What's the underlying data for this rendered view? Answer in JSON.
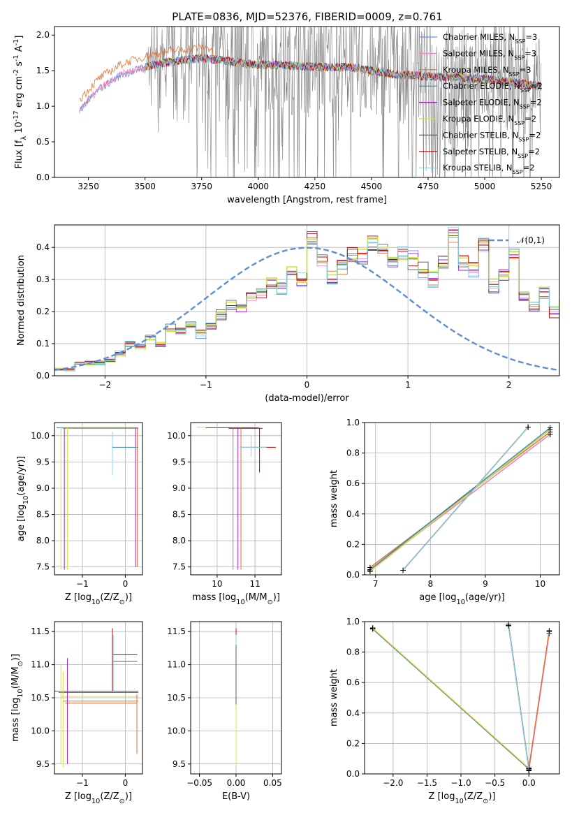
{
  "figure": {
    "title": "PLATE=0836, MJD=52376, FIBERID=0009, z=0.761"
  },
  "chart_data": [
    {
      "id": "spectrum",
      "type": "line",
      "xlabel": "wavelength [Angstrom, rest frame]",
      "ylabel": "Flux [f$_\\lambda 10^{-17}$ erg cm$^{-2}$ s$^{-1}$ A$^{-1}$]",
      "xlim": [
        3100,
        5330
      ],
      "ylim": [
        0,
        2.12
      ],
      "xticks": [
        "3250",
        "3500",
        "3750",
        "4000",
        "4250",
        "4500",
        "4750",
        "5000",
        "5250"
      ],
      "yticks": [
        "0.0",
        "0.5",
        "1.0",
        "1.5",
        "2.0"
      ],
      "legend_position": "top-right",
      "series": [
        {
          "name": "Chabrier MILES, N_SSP=3",
          "color": "#6495ed"
        },
        {
          "name": "Salpeter MILES, N_SSP=3",
          "color": "#ff7fbf"
        },
        {
          "name": "Kroupa MILES, N_SSP=3",
          "color": "#e07030"
        },
        {
          "name": "Chabrier ELODIE, N_SSP=2",
          "color": "#2f8fa0"
        },
        {
          "name": "Salpeter ELODIE, N_SSP=2",
          "color": "#a020d0"
        },
        {
          "name": "Kroupa ELODIE, N_SSP=2",
          "color": "#d4e830"
        },
        {
          "name": "Chabrier STELIB, N_SSP=2",
          "color": "#5a5a5a"
        },
        {
          "name": "Salpeter STELIB, N_SSP=2",
          "color": "#c00000"
        },
        {
          "name": "Kroupa STELIB, N_SSP=2",
          "color": "#88d8e8"
        }
      ],
      "data_color": "#808080",
      "model_approx": {
        "x": [
          3210,
          3300,
          3400,
          3500,
          3600,
          3750,
          3900,
          4000,
          4100,
          4250,
          4400,
          4500,
          4600,
          4750,
          4900,
          5000,
          5100,
          5200,
          5250
        ],
        "y": [
          0.95,
          1.25,
          1.45,
          1.55,
          1.62,
          1.68,
          1.62,
          1.58,
          1.58,
          1.55,
          1.55,
          1.5,
          1.45,
          1.42,
          1.4,
          1.38,
          1.35,
          1.3,
          1.28
        ]
      }
    },
    {
      "id": "residual_hist",
      "type": "line",
      "xlabel": "(data-model)/error",
      "ylabel": "Normed distribution",
      "xlim": [
        -2.5,
        2.5
      ],
      "ylim": [
        0,
        0.47
      ],
      "xticks": [
        "−2",
        "−1",
        "0",
        "1",
        "2"
      ],
      "yticks": [
        "0.0",
        "0.1",
        "0.2",
        "0.3",
        "0.4"
      ],
      "legend_position": "top-right",
      "legend": "$\\mathcal{N}(0,1)$",
      "normal_color": "#5b8fd8",
      "bin_edges_start": -2.5,
      "bin_width": 0.1,
      "hist_values": [
        0.02,
        0.02,
        0.04,
        0.04,
        0.04,
        0.05,
        0.07,
        0.1,
        0.09,
        0.12,
        0.1,
        0.15,
        0.14,
        0.16,
        0.13,
        0.15,
        0.19,
        0.22,
        0.21,
        0.25,
        0.26,
        0.29,
        0.27,
        0.32,
        0.3,
        0.43,
        0.36,
        0.31,
        0.34,
        0.38,
        0.37,
        0.41,
        0.4,
        0.35,
        0.38,
        0.36,
        0.33,
        0.3,
        0.35,
        0.44,
        0.35,
        0.33,
        0.41,
        0.28,
        0.32,
        0.38,
        0.25,
        0.22,
        0.26,
        0.2,
        0.24,
        0.19,
        0.21,
        0.18,
        0.16,
        0.15,
        0.11,
        0.12,
        0.09,
        0.1,
        0.07,
        0.08,
        0.06,
        0.05,
        0.06,
        0.04,
        0.04,
        0.03,
        0.03,
        0.03
      ]
    },
    {
      "id": "age_vs_Z",
      "type": "scatter",
      "xlabel": "Z [log$_{10}$(Z/Z$_\\odot$)]",
      "ylabel": "age  [log$_{10}$(age/yr)]",
      "xlim": [
        -1.65,
        0.4
      ],
      "ylim": [
        7.35,
        10.25
      ],
      "xticks": [
        "−1",
        "0"
      ],
      "yticks": [
        "7.5",
        "8.0",
        "8.5",
        "9.0",
        "9.5",
        "10.0"
      ]
    },
    {
      "id": "age_vs_mass",
      "type": "scatter",
      "xlabel": "mass [log$_{10}$(M/M$_\\odot$)]",
      "ylabel": "",
      "xlim": [
        9.3,
        11.7
      ],
      "ylim": [
        7.35,
        10.25
      ],
      "xticks": [
        "10",
        "11"
      ],
      "yticks": [
        "7.5",
        "8.0",
        "8.5",
        "9.0",
        "9.5",
        "10.0"
      ]
    },
    {
      "id": "weight_vs_age",
      "type": "line",
      "xlabel": "age  [log$_{10}$(age/yr)]",
      "ylabel": "mass weight",
      "xlim": [
        6.8,
        10.35
      ],
      "ylim": [
        0,
        1.0
      ],
      "xticks": [
        "7",
        "8",
        "9",
        "10"
      ],
      "yticks": [
        "0.0",
        "0.2",
        "0.4",
        "0.6",
        "0.8",
        "1.0"
      ],
      "series": [
        {
          "x": [
            6.9,
            10.18
          ],
          "y": [
            0.04,
            0.93
          ]
        },
        {
          "x": [
            6.9,
            10.18
          ],
          "y": [
            0.03,
            0.96
          ]
        },
        {
          "x": [
            7.5,
            9.78
          ],
          "y": [
            0.03,
            0.97
          ]
        }
      ]
    },
    {
      "id": "mass_vs_Z",
      "type": "scatter",
      "xlabel": "Z [log$_{10}$(Z/Z$_\\odot$)]",
      "ylabel": "mass [log$_{10}$(M/M$_\\odot$)]",
      "xlim": [
        -1.65,
        0.4
      ],
      "ylim": [
        9.35,
        11.65
      ],
      "xticks": [
        "−1",
        "0"
      ],
      "yticks": [
        "9.5",
        "10.0",
        "10.5",
        "11.0",
        "11.5"
      ]
    },
    {
      "id": "mass_vs_ebv",
      "type": "scatter",
      "xlabel": "E(B-V)",
      "ylabel": "",
      "xlim": [
        -0.062,
        0.062
      ],
      "ylim": [
        9.35,
        11.65
      ],
      "xticks": [
        "−0.05",
        "0.00",
        "0.05"
      ],
      "yticks": [
        "9.5",
        "10.0",
        "10.5",
        "11.0",
        "11.5"
      ]
    },
    {
      "id": "weight_vs_Z",
      "type": "line",
      "xlabel": "Z [log$_{10}$(Z/Z$_\\odot$)]",
      "ylabel": "mass weight",
      "xlim": [
        -2.42,
        0.45
      ],
      "ylim": [
        0,
        1.0
      ],
      "xticks": [
        "−2.0",
        "−1.5",
        "−1.0",
        "−0.5",
        "0.0"
      ],
      "yticks": [
        "0.0",
        "0.2",
        "0.4",
        "0.6",
        "0.8",
        "1.0"
      ],
      "series": [
        {
          "x": [
            -2.3,
            0.0
          ],
          "y": [
            0.96,
            0.04
          ]
        },
        {
          "x": [
            0.0,
            0.3
          ],
          "y": [
            0.03,
            0.93
          ]
        },
        {
          "x": [
            -0.3,
            0.0
          ],
          "y": [
            0.98,
            0.03
          ]
        }
      ]
    }
  ]
}
